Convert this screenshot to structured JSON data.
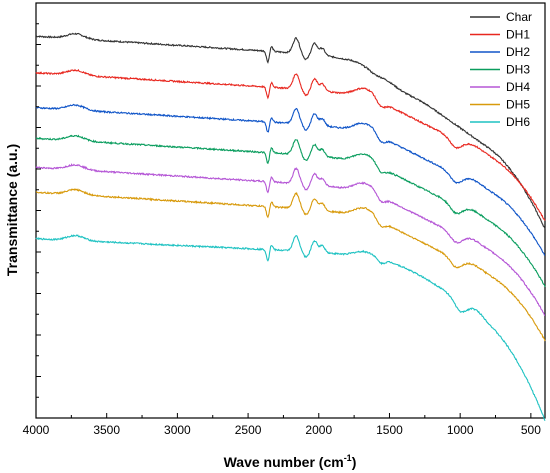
{
  "chart_data": {
    "type": "line",
    "xlabel": "Wave number (cm",
    "xlabel_sup": "-1",
    "xlabel_suffix": ")",
    "ylabel": "Transmittance (a.u.)",
    "xlim": [
      4000,
      400
    ],
    "ylim": [
      0,
      100
    ],
    "x_ticks": [
      4000,
      3500,
      3000,
      2500,
      2000,
      1500,
      1000,
      500
    ],
    "x_tick_labels": [
      "4000",
      "3500",
      "3000",
      "2500",
      "2000",
      "1500",
      "1000",
      "500"
    ],
    "y_ticks_labeled": false,
    "grid": false,
    "legend_position": "top-right",
    "series": [
      {
        "name": "Char",
        "color": "#333333",
        "offset": 92.0,
        "shape": "char"
      },
      {
        "name": "DH1",
        "color": "#e8271f",
        "offset": 83.2,
        "shape": "dh"
      },
      {
        "name": "DH2",
        "color": "#1055c8",
        "offset": 74.8,
        "shape": "dh"
      },
      {
        "name": "DH3",
        "color": "#0a9d5e",
        "offset": 67.4,
        "shape": "dh"
      },
      {
        "name": "DH4",
        "color": "#b557d6",
        "offset": 60.4,
        "shape": "dh"
      },
      {
        "name": "DH5",
        "color": "#d89a0c",
        "offset": 54.4,
        "shape": "dh"
      },
      {
        "name": "DH6",
        "color": "#1fc2c2",
        "offset": 43.2,
        "shape": "dh6"
      }
    ]
  }
}
